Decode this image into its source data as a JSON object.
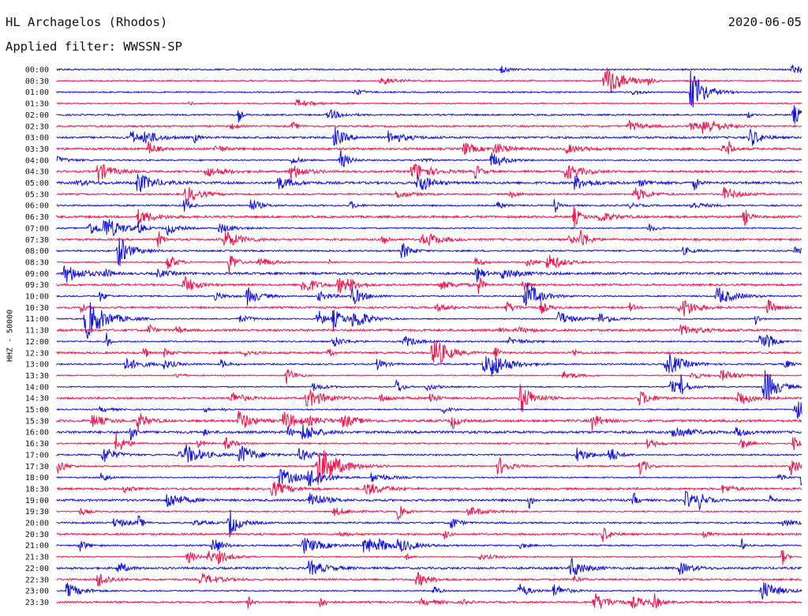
{
  "header": {
    "station": "HL Archagelos (Rhodos)",
    "date": "2020-06-05",
    "filter": "Applied filter: WWSSN-SP"
  },
  "chart_data": {
    "type": "line",
    "title": "HL Archagelos (Rhodos)",
    "ylabel": "HHZ - 50000",
    "row_labels": [
      "00:00",
      "00:30",
      "01:00",
      "01:30",
      "02:00",
      "02:30",
      "03:00",
      "03:30",
      "04:00",
      "04:30",
      "05:00",
      "05:30",
      "06:00",
      "06:30",
      "07:00",
      "07:30",
      "08:00",
      "08:30",
      "09:00",
      "09:30",
      "10:00",
      "10:30",
      "11:00",
      "11:30",
      "12:00",
      "12:30",
      "13:00",
      "13:30",
      "14:00",
      "14:30",
      "15:00",
      "15:30",
      "16:00",
      "16:30",
      "17:00",
      "17:30",
      "18:00",
      "18:30",
      "19:00",
      "19:30",
      "20:00",
      "20:30",
      "21:00",
      "21:30",
      "22:00",
      "22:30",
      "23:00",
      "23:30"
    ],
    "colors": [
      "#1010e0",
      "#f0124a"
    ],
    "grid": false,
    "legend": "none"
  }
}
